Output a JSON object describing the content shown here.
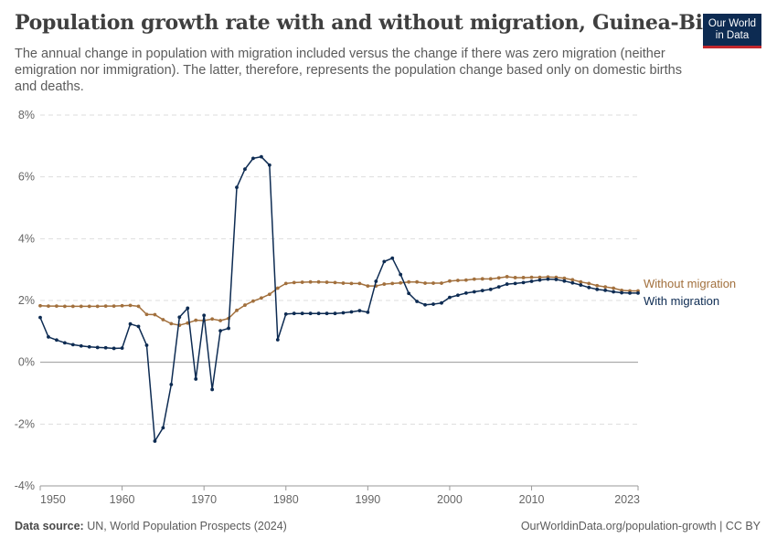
{
  "header": {
    "title": "Population growth rate with and without migration, Guinea-Bissau",
    "subtitle": "The annual change in population with migration included versus the change if there was zero migration (neither emigration nor immigration). The latter, therefore, represents the population change based only on domestic births and deaths.",
    "logo_line1": "Our World",
    "logo_line2": "in Data"
  },
  "footer": {
    "source_label": "Data source:",
    "source_text": "UN, World Population Prospects (2024)",
    "credit": "OurWorldinData.org/population-growth | CC BY"
  },
  "colors": {
    "with_migration": "#0d2b52",
    "without_migration": "#a2703d",
    "logo_bg": "#0d2b52",
    "logo_accent": "#c1272d"
  },
  "chart_data": {
    "type": "line",
    "x_ticks": [
      "1950",
      "1960",
      "1970",
      "1980",
      "1990",
      "2000",
      "2010",
      "2023"
    ],
    "y_ticks": [
      "8%",
      "6%",
      "4%",
      "2%",
      "0%",
      "-2%",
      "-4%"
    ],
    "xlim": [
      1950,
      2023
    ],
    "ylim": [
      -4,
      8
    ],
    "y_unit": "%",
    "grid": "horizontal dashed",
    "legend": "right-side line labels",
    "series": [
      {
        "name": "Without migration",
        "color": "#a2703d",
        "x": [
          1950,
          1951,
          1952,
          1953,
          1954,
          1955,
          1956,
          1957,
          1958,
          1959,
          1960,
          1961,
          1962,
          1963,
          1964,
          1965,
          1966,
          1967,
          1968,
          1969,
          1970,
          1971,
          1972,
          1973,
          1974,
          1975,
          1976,
          1977,
          1978,
          1979,
          1980,
          1981,
          1982,
          1983,
          1984,
          1985,
          1986,
          1987,
          1988,
          1989,
          1990,
          1991,
          1992,
          1993,
          1994,
          1995,
          1996,
          1997,
          1998,
          1999,
          2000,
          2001,
          2002,
          2003,
          2004,
          2005,
          2006,
          2007,
          2008,
          2009,
          2010,
          2011,
          2012,
          2013,
          2014,
          2015,
          2016,
          2017,
          2018,
          2019,
          2020,
          2021,
          2022,
          2023
        ],
        "values": [
          1.83,
          1.82,
          1.82,
          1.81,
          1.81,
          1.81,
          1.81,
          1.81,
          1.82,
          1.82,
          1.83,
          1.84,
          1.81,
          1.55,
          1.54,
          1.38,
          1.25,
          1.2,
          1.27,
          1.36,
          1.35,
          1.4,
          1.35,
          1.42,
          1.68,
          1.85,
          1.98,
          2.08,
          2.2,
          2.4,
          2.55,
          2.58,
          2.59,
          2.6,
          2.6,
          2.59,
          2.58,
          2.56,
          2.55,
          2.55,
          2.47,
          2.47,
          2.53,
          2.55,
          2.57,
          2.6,
          2.6,
          2.56,
          2.56,
          2.56,
          2.63,
          2.65,
          2.66,
          2.69,
          2.7,
          2.7,
          2.73,
          2.77,
          2.74,
          2.74,
          2.75,
          2.75,
          2.76,
          2.75,
          2.72,
          2.67,
          2.6,
          2.55,
          2.48,
          2.44,
          2.4,
          2.33,
          2.31,
          2.31
        ]
      },
      {
        "name": "With migration",
        "color": "#0d2b52",
        "x": [
          1950,
          1951,
          1952,
          1953,
          1954,
          1955,
          1956,
          1957,
          1958,
          1959,
          1960,
          1961,
          1962,
          1963,
          1964,
          1965,
          1966,
          1967,
          1968,
          1969,
          1970,
          1971,
          1972,
          1973,
          1974,
          1975,
          1976,
          1977,
          1978,
          1979,
          1980,
          1981,
          1982,
          1983,
          1984,
          1985,
          1986,
          1987,
          1988,
          1989,
          1990,
          1991,
          1992,
          1993,
          1994,
          1995,
          1996,
          1997,
          1998,
          1999,
          2000,
          2001,
          2002,
          2003,
          2004,
          2005,
          2006,
          2007,
          2008,
          2009,
          2010,
          2011,
          2012,
          2013,
          2014,
          2015,
          2016,
          2017,
          2018,
          2019,
          2020,
          2021,
          2022,
          2023
        ],
        "values": [
          1.45,
          0.82,
          0.72,
          0.63,
          0.57,
          0.53,
          0.5,
          0.48,
          0.47,
          0.45,
          0.46,
          1.24,
          1.16,
          0.55,
          -2.55,
          -2.12,
          -0.72,
          1.46,
          1.75,
          -0.54,
          1.52,
          -0.88,
          1.02,
          1.1,
          5.66,
          6.25,
          6.6,
          6.65,
          6.38,
          0.73,
          1.56,
          1.58,
          1.58,
          1.58,
          1.58,
          1.58,
          1.58,
          1.6,
          1.63,
          1.67,
          1.62,
          2.62,
          3.26,
          3.37,
          2.84,
          2.23,
          1.97,
          1.86,
          1.88,
          1.92,
          2.1,
          2.17,
          2.24,
          2.28,
          2.32,
          2.36,
          2.44,
          2.53,
          2.55,
          2.58,
          2.62,
          2.66,
          2.69,
          2.68,
          2.63,
          2.57,
          2.5,
          2.42,
          2.36,
          2.33,
          2.28,
          2.25,
          2.24,
          2.24
        ]
      }
    ]
  }
}
